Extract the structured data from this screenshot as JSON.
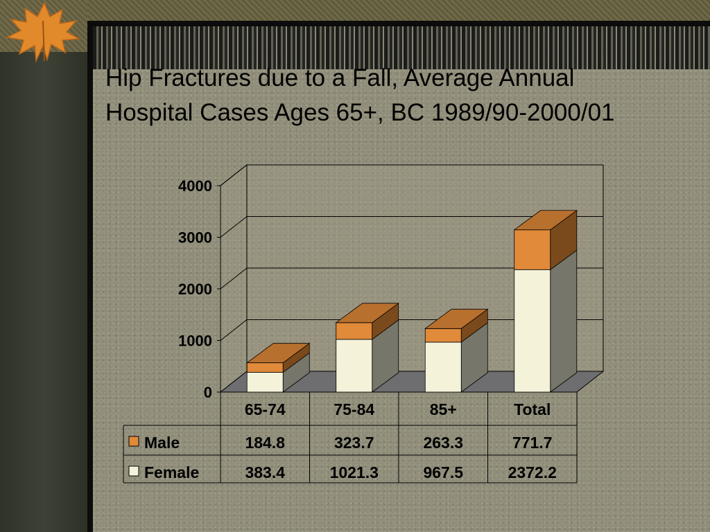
{
  "slide": {
    "title_line1": "Hip Fractures due to a Fall, Average Annual",
    "title_line2": "Hospital Cases Ages 65+, BC 1989/90-2000/01"
  },
  "colors": {
    "male": "#e08a3a",
    "male_top": "#b8702e",
    "male_side": "#7a4a1c",
    "female": "#f5f2da",
    "female_side": "#76766a",
    "floor": "#6e6e70",
    "walls": "#a29e8a"
  },
  "chart_data": {
    "type": "bar",
    "stacked": true,
    "three_d": true,
    "title": "Hip Fractures due to a Fall, Average Annual Hospital Cases Ages 65+, BC 1989/90-2000/01",
    "categories": [
      "65-74",
      "75-84",
      "85+",
      "Total"
    ],
    "series": [
      {
        "name": "Female",
        "values": [
          383.4,
          1021.3,
          967.5,
          2372.2
        ],
        "display": [
          "383.4",
          "1021.3",
          "967.5",
          "2372.2"
        ]
      },
      {
        "name": "Male",
        "values": [
          184.8,
          323.7,
          263.3,
          771.7
        ],
        "display": [
          "184.8",
          "323.7",
          "263.3",
          "771.7"
        ]
      }
    ],
    "table_rows": [
      "Male",
      "Female"
    ],
    "ylim": [
      0,
      4000
    ],
    "yticks": [
      0,
      1000,
      2000,
      3000,
      4000
    ],
    "grid": true,
    "legend": "data-table"
  }
}
